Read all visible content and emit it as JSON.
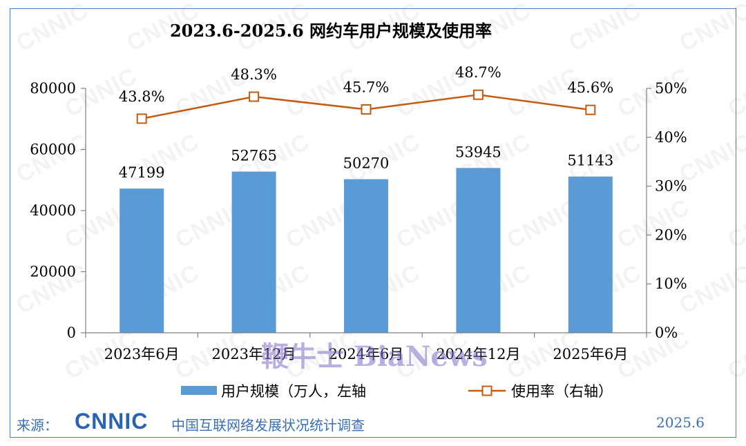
{
  "chart_data": {
    "type": "bar",
    "title": "2023.6-2025.6 网约车用户规模及使用率",
    "categories": [
      "2023年6月",
      "2023年12月",
      "2024年6月",
      "2024年12月",
      "2025年6月"
    ],
    "series": [
      {
        "name": "用户规模（万人，左轴",
        "type": "bar",
        "axis": "left",
        "values": [
          47199,
          52765,
          50270,
          53945,
          51143
        ],
        "labels": [
          "47199",
          "52765",
          "50270",
          "53945",
          "51143"
        ],
        "color": "#5b9bd5"
      },
      {
        "name": "使用率（右轴）",
        "type": "line",
        "axis": "right",
        "values": [
          43.8,
          48.3,
          45.7,
          48.7,
          45.6
        ],
        "labels": [
          "43.8%",
          "48.3%",
          "45.7%",
          "48.7%",
          "45.6%"
        ],
        "color": "#c55a11"
      }
    ],
    "yleft": {
      "range": [
        0,
        80000
      ],
      "ticks": [
        "0",
        "20000",
        "40000",
        "60000",
        "80000"
      ]
    },
    "yright": {
      "range": [
        0,
        50
      ],
      "ticks": [
        "0%",
        "10%",
        "20%",
        "30%",
        "40%",
        "50%"
      ]
    },
    "legend": "bottom",
    "grid": false
  },
  "footer": {
    "source_label": "来源：",
    "logo_text": "CNNIC",
    "org": "中国互联网络发展状况统计调查",
    "date": "2025.6"
  },
  "watermark": {
    "text": "CNNIC",
    "overlay": "鞭牛士 BiaNews"
  }
}
